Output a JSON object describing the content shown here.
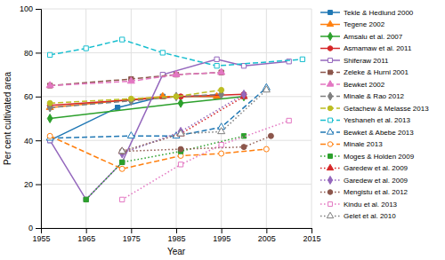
{
  "chart_data": {
    "type": "line",
    "xlabel": "Year",
    "ylabel": "Per cent cultivated area",
    "xlim": [
      1955,
      2015
    ],
    "ylim": [
      0,
      100
    ],
    "xticks": [
      1955,
      1965,
      1975,
      1985,
      1995,
      2005,
      2015
    ],
    "yticks": [
      0,
      20,
      40,
      60,
      80,
      100
    ],
    "grid": true,
    "legend": "right",
    "series": [
      {
        "name": "Tekle & Hedlund 2000",
        "x": [
          1957,
          1972,
          1982,
          1994
        ],
        "values": [
          40,
          55,
          60,
          60
        ],
        "line_style": "solid",
        "marker": "square"
      },
      {
        "name": "Tegene 2002",
        "x": [
          1957,
          1982,
          1994
        ],
        "values": [
          55,
          60,
          60
        ],
        "line_style": "solid",
        "marker": "triangle"
      },
      {
        "name": "Amsalu et al. 2007",
        "x": [
          1957,
          1986,
          2000
        ],
        "values": [
          50,
          57,
          60
        ],
        "line_style": "solid",
        "marker": "diamond"
      },
      {
        "name": "Asmamaw et al. 2011",
        "x": [
          1957,
          1986,
          2000
        ],
        "values": [
          56,
          60,
          61
        ],
        "line_style": "solid",
        "marker": "circle"
      },
      {
        "name": "Shiferaw 2011",
        "x": [
          1957,
          1965,
          1973,
          1982,
          1994,
          2000,
          2010
        ],
        "values": [
          40,
          13,
          30,
          70,
          77,
          74,
          76
        ],
        "line_style": "solid",
        "marker": "square-open"
      },
      {
        "name": "Zeleke & Hurni 2001",
        "x": [
          1957,
          1975,
          1985,
          1995
        ],
        "values": [
          65,
          68,
          70,
          71
        ],
        "line_style": "dashed",
        "marker": "square"
      },
      {
        "name": "Bewket 2002",
        "x": [
          1957,
          1975,
          1985,
          1995
        ],
        "values": [
          65,
          67,
          70,
          71
        ],
        "line_style": "dashed",
        "marker": "triangle"
      },
      {
        "name": "Minale & Rao 2012",
        "x": [
          1957,
          1975,
          1985,
          1995
        ],
        "values": [
          55,
          58,
          60,
          61
        ],
        "line_style": "dashed",
        "marker": "diamond"
      },
      {
        "name": "Getachew & Melasse 2013",
        "x": [
          1957,
          1975,
          1985,
          1995
        ],
        "values": [
          57,
          59,
          60,
          63
        ],
        "line_style": "dashed",
        "marker": "circle"
      },
      {
        "name": "Yeshaneh et al. 2013",
        "x": [
          1957,
          1965,
          1973,
          1982,
          1994,
          2013
        ],
        "values": [
          79,
          82,
          86,
          80,
          74,
          77
        ],
        "line_style": "dashed",
        "marker": "square-open"
      },
      {
        "name": "Bewket & Abebe 2013",
        "x": [
          1957,
          1975,
          1985,
          1995,
          2005
        ],
        "values": [
          41,
          42,
          42,
          46,
          64
        ],
        "line_style": "dashed",
        "marker": "triangle-open"
      },
      {
        "name": "Minale 2013",
        "x": [
          1957,
          1973,
          1986,
          1995,
          2005
        ],
        "values": [
          42,
          27,
          33,
          34,
          36
        ],
        "line_style": "dashed",
        "marker": "circle-open"
      },
      {
        "name": "Moges & Holden 2009",
        "x": [
          1965,
          1973,
          1986,
          2000
        ],
        "values": [
          13,
          30,
          35,
          42
        ],
        "line_style": "dotted",
        "marker": "square"
      },
      {
        "name": "Garedew et al. 2009",
        "x": [
          1973,
          1986,
          2000
        ],
        "values": [
          35,
          43,
          60
        ],
        "line_style": "dotted",
        "marker": "triangle"
      },
      {
        "name": "Garedew et al. 2009",
        "x": [
          1973,
          1986,
          2000
        ],
        "values": [
          34,
          44,
          61
        ],
        "line_style": "dotted",
        "marker": "diamond"
      },
      {
        "name": "Mengistu et al. 2012",
        "x": [
          1973,
          1986,
          2000,
          2006
        ],
        "values": [
          35,
          36,
          37,
          42
        ],
        "line_style": "dotted",
        "marker": "circle"
      },
      {
        "name": "Kindu et al. 2013",
        "x": [
          1973,
          1986,
          1995,
          2010
        ],
        "values": [
          13,
          29,
          38,
          49
        ],
        "line_style": "dotted",
        "marker": "square-open"
      },
      {
        "name": "Gelet et al. 2010",
        "x": [
          1973,
          1986,
          1995,
          2005
        ],
        "values": [
          35,
          43,
          44,
          63
        ],
        "line_style": "dotted",
        "marker": "triangle-open"
      }
    ]
  }
}
